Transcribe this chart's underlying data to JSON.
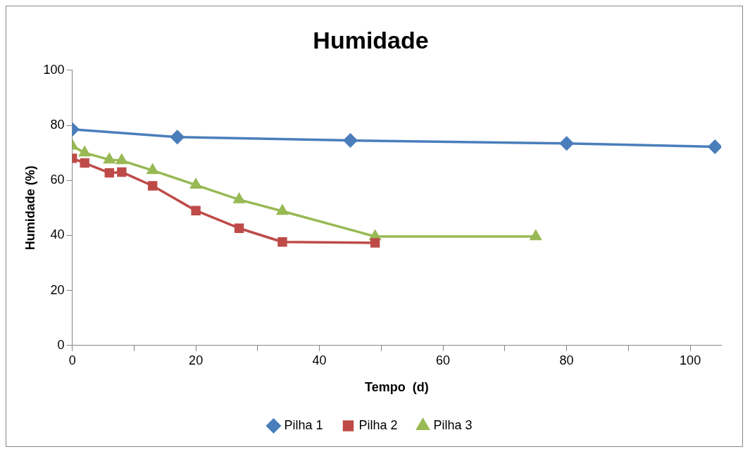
{
  "chart_data": {
    "type": "line",
    "title": "Humidade",
    "xlabel": "Tempo  (d)",
    "ylabel": "Humidade (%)",
    "xlim": [
      0,
      105
    ],
    "xticks": [
      0,
      {
        "value": 10,
        "label": null
      },
      20,
      {
        "value": 30,
        "label": null
      },
      40,
      {
        "value": 50,
        "label": null
      },
      60,
      {
        "value": 70,
        "label": null
      },
      80,
      {
        "value": 90,
        "label": null
      },
      100
    ],
    "ylim": [
      0,
      100
    ],
    "yticks": [
      0,
      20,
      40,
      60,
      80,
      100
    ],
    "grid": false,
    "legend": "bottom",
    "line_style": "solid",
    "series": [
      {
        "name": "Pilha 1",
        "color": "#4a7ebb",
        "marker": "diamond",
        "x": [
          0,
          17,
          45,
          80,
          104
        ],
        "values": [
          78.5,
          75.7,
          74.5,
          73.4,
          72.2
        ]
      },
      {
        "name": "Pilha 2",
        "color": "#be4b48",
        "marker": "square",
        "x": [
          0,
          2,
          6,
          8,
          13,
          20,
          27,
          34,
          49
        ],
        "values": [
          68,
          66.3,
          62.7,
          63,
          58,
          49,
          42.6,
          37.6,
          37.3
        ]
      },
      {
        "name": "Pilha 3",
        "color": "#98b954",
        "marker": "triangle",
        "x": [
          0,
          2,
          6,
          8,
          13,
          20,
          27,
          34,
          49,
          75
        ],
        "values": [
          72.5,
          70,
          67.5,
          67.2,
          63.6,
          58.3,
          53,
          48.8,
          39.6,
          39.6
        ]
      }
    ]
  }
}
